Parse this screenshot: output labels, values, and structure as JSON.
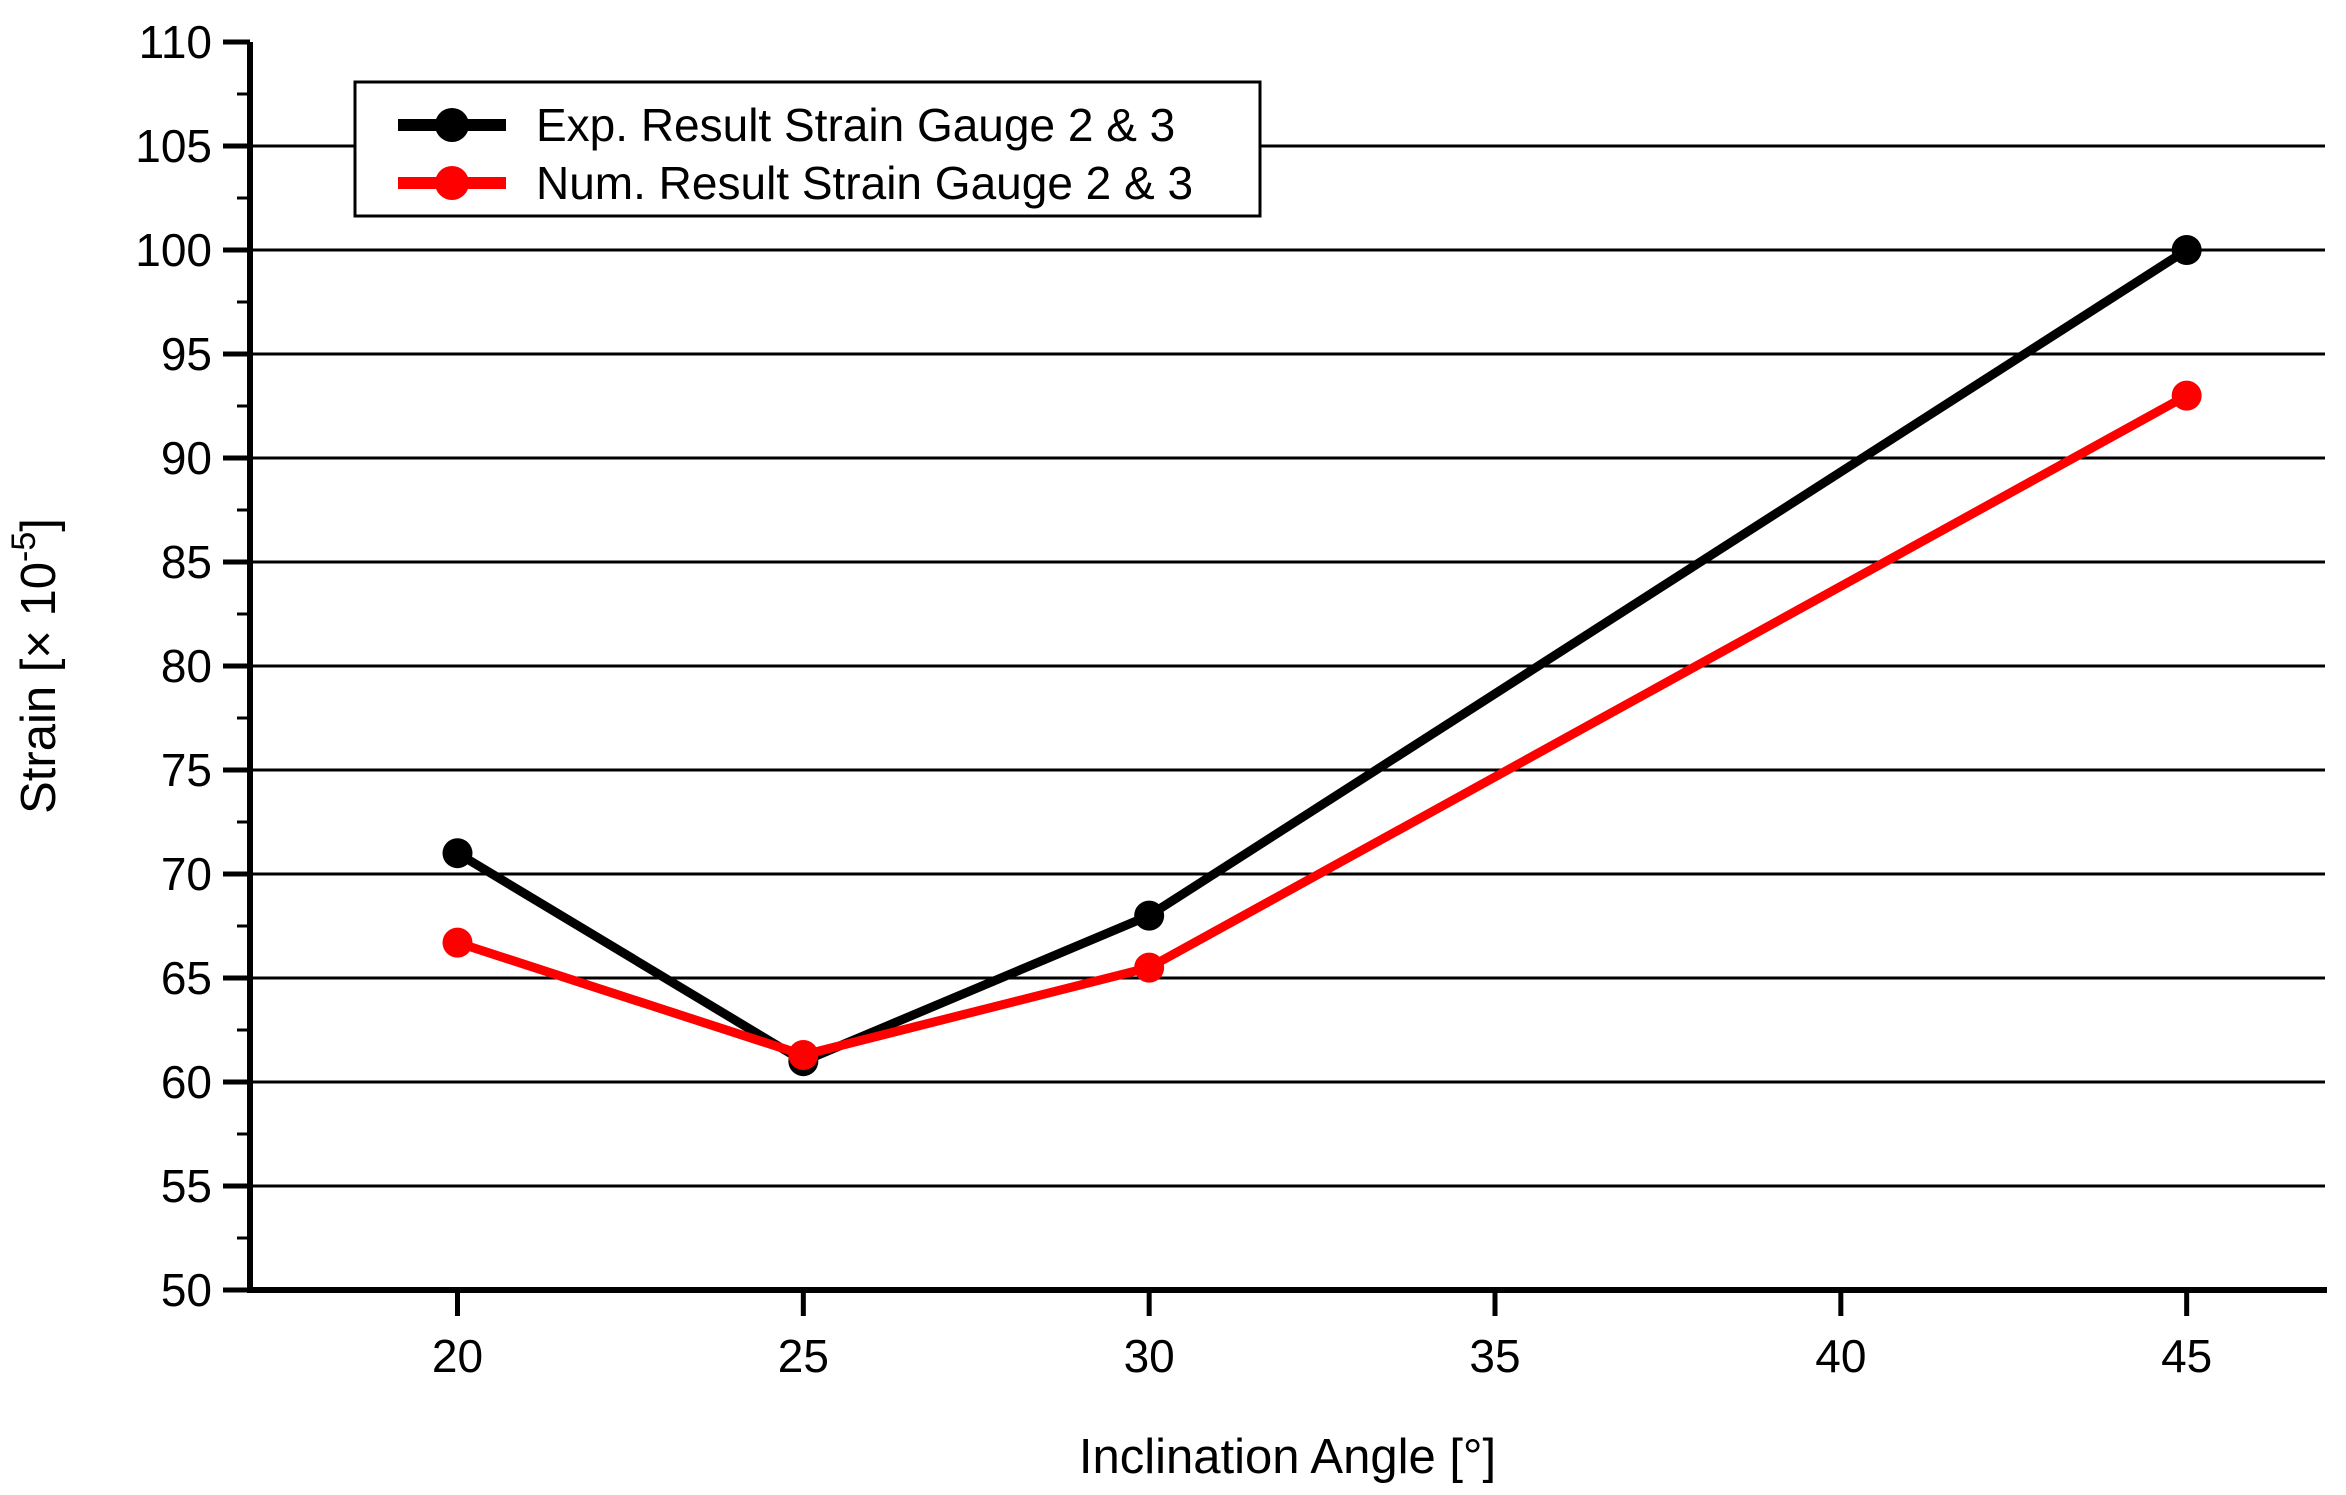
{
  "chart_data": {
    "type": "line",
    "title": "",
    "xlabel": "Inclination Angle [°]",
    "ylabel": "Strain [× 10⁻⁵]",
    "ylabel_parts": {
      "prefix": "Strain [× 10",
      "superscript": "-5",
      "suffix": "]"
    },
    "x_ticks": [
      20,
      25,
      30,
      35,
      40,
      45
    ],
    "y_ticks": [
      50,
      55,
      60,
      65,
      70,
      75,
      80,
      85,
      90,
      95,
      100,
      105,
      110
    ],
    "xlim": [
      17,
      47
    ],
    "ylim": [
      50,
      110
    ],
    "grid": "horizontal-major-only",
    "legend_position": "top-left",
    "axis_color": "#000000",
    "background_color": "#ffffff",
    "series": [
      {
        "name": "Exp. Result Strain Gauge 2 & 3",
        "color": "#000000",
        "marker": "circle",
        "x": [
          20,
          25,
          30,
          45
        ],
        "y": [
          71,
          61,
          68,
          100
        ]
      },
      {
        "name": "Num. Result Strain Gauge 2 & 3",
        "color": "#ff0000",
        "marker": "circle",
        "x": [
          20,
          25,
          30,
          45
        ],
        "y": [
          66.7,
          61.3,
          65.5,
          93
        ]
      }
    ]
  }
}
